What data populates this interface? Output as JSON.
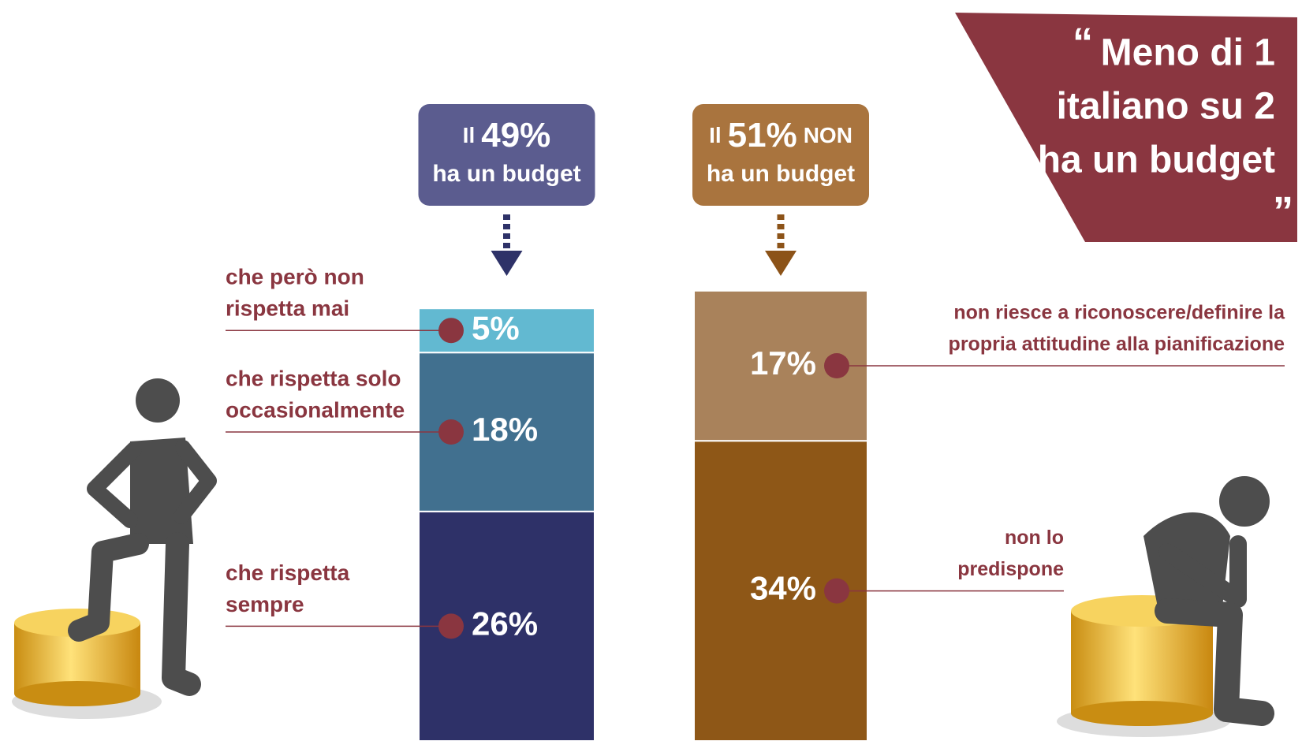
{
  "chart_data": {
    "type": "stacked-bar",
    "quote": {
      "open": "“",
      "lines": [
        "Meno di 1",
        "italiano su 2",
        "ha un budget"
      ],
      "close": "”",
      "color": "#8a3640"
    },
    "label_color": "#8a3640",
    "columns": [
      {
        "prefix": "Il",
        "total": 49,
        "total_label": "49%",
        "line2": "ha un budget",
        "header_color": "#5b5c8f",
        "arrow_color": "#2e3268",
        "segments": [
          {
            "name": [
              "che rispetta",
              "sempre"
            ],
            "value": 26,
            "value_label": "26%",
            "color": "#2e3168"
          },
          {
            "name": [
              "che rispetta solo",
              "occasionalmente"
            ],
            "value": 18,
            "value_label": "18%",
            "color": "#41708f"
          },
          {
            "name": [
              "che però non",
              "rispetta mai"
            ],
            "value": 5,
            "value_label": "5%",
            "color": "#62b9d1"
          }
        ]
      },
      {
        "prefix": "Il",
        "total": 51,
        "total_label": "51%",
        "suffix": "NON",
        "line2": "ha un budget",
        "header_color": "#a9743e",
        "arrow_color": "#8c5318",
        "segments": [
          {
            "name": [
              "non lo",
              "predispone"
            ],
            "value": 34,
            "value_label": "34%",
            "color": "#8e5717"
          },
          {
            "name": [
              "non riesce a riconoscere/definire la",
              "propria attitudine alla pianificazione"
            ],
            "value": 17,
            "value_label": "17%",
            "color": "#a9825b"
          }
        ]
      }
    ]
  }
}
